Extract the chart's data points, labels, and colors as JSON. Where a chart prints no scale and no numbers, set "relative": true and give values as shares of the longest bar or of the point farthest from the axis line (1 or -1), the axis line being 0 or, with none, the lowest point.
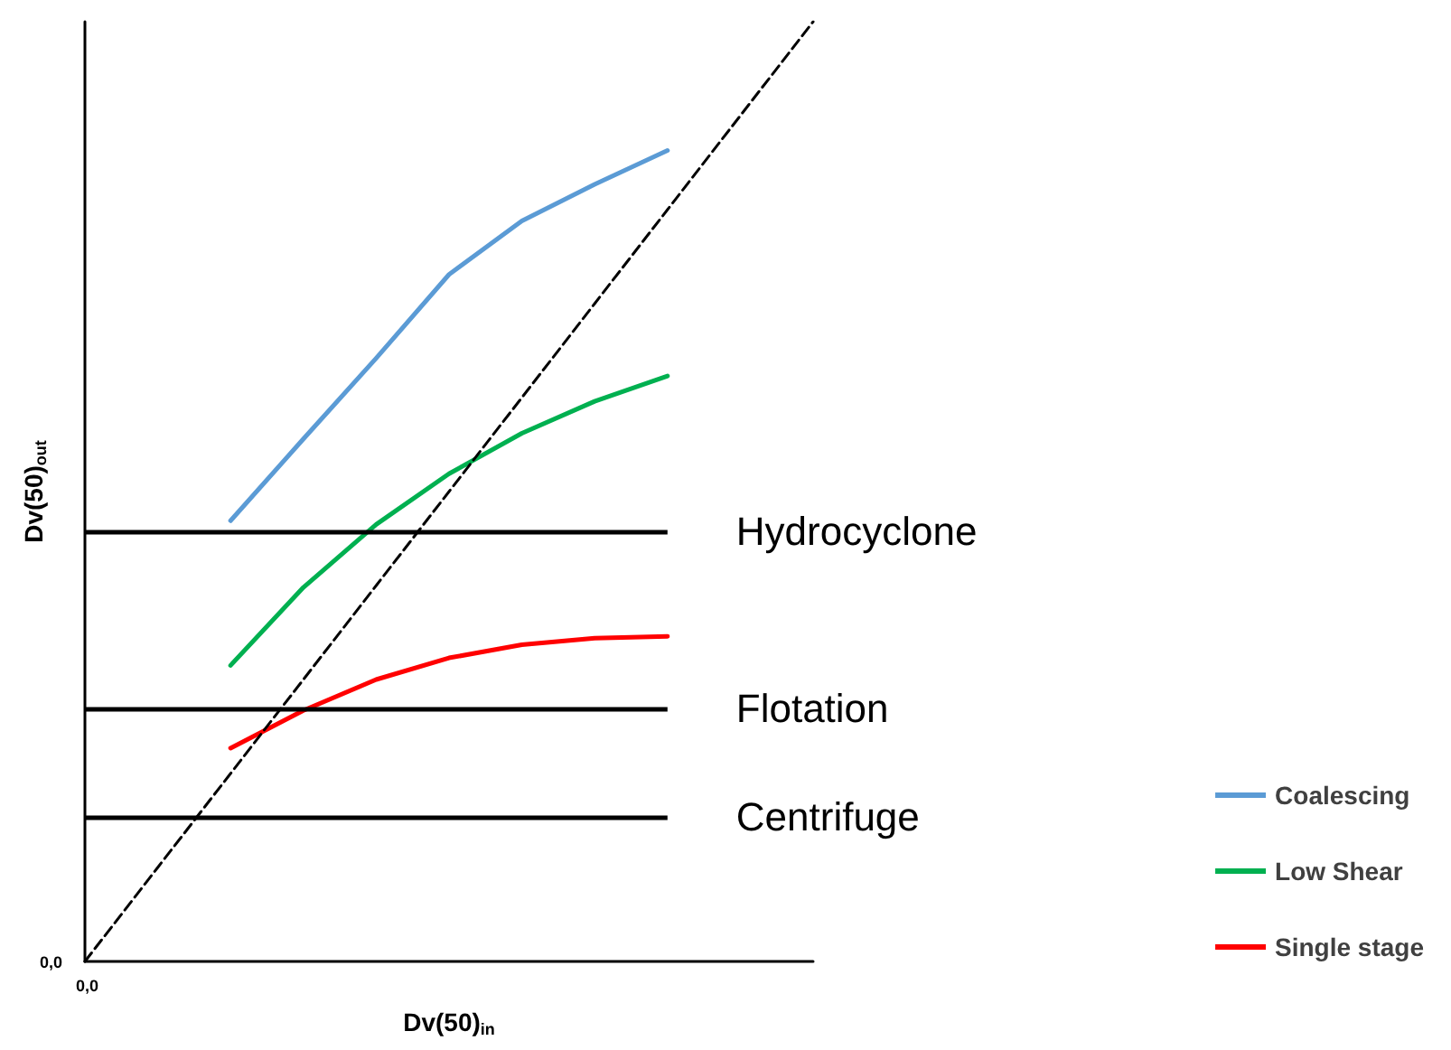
{
  "chart_data": {
    "type": "line",
    "relative": true,
    "xlabel": "Dv(50)$_{in}$",
    "ylabel": "Dv(50)$_{out}$",
    "categories": [
      null,
      null,
      null,
      null,
      null,
      null,
      null,
      null,
      null,
      null,
      null
    ],
    "series": [
      {
        "name": "Coalescing",
        "color": "#5b9bd5",
        "values": [
          null,
          null,
          0.469,
          0.556,
          0.642,
          0.731,
          0.788,
          0.827,
          0.863,
          null,
          null
        ]
      },
      {
        "name": "Low Shear",
        "color": "#00b050",
        "values": [
          null,
          null,
          0.315,
          0.398,
          0.465,
          0.519,
          0.562,
          0.596,
          0.623,
          null,
          null
        ]
      },
      {
        "name": "Single stage",
        "color": "#ff0000",
        "values": [
          null,
          null,
          0.227,
          0.267,
          0.3,
          0.323,
          0.337,
          0.344,
          0.346,
          null,
          null
        ]
      },
      {
        "color": "#000000",
        "line_style": "dashed",
        "values": [
          0,
          0.1,
          0.2,
          0.3,
          0.4,
          0.5,
          0.6,
          0.7,
          0.8,
          0.9,
          1
        ]
      }
    ],
    "ref_lines": [
      {
        "axis": "y",
        "value": 0.458,
        "label": "Hydrocyclone",
        "color": "#000000"
      },
      {
        "axis": "y",
        "value": 0.269,
        "label": "Flotation",
        "color": "#000000"
      },
      {
        "axis": "y",
        "value": 0.154,
        "label": "Centrifuge",
        "color": "#000000"
      }
    ],
    "annotations": [
      "0,0",
      "0,0"
    ],
    "legend": "bottom right",
    "grid": false,
    "marker": "none",
    "line_style": "solid"
  }
}
